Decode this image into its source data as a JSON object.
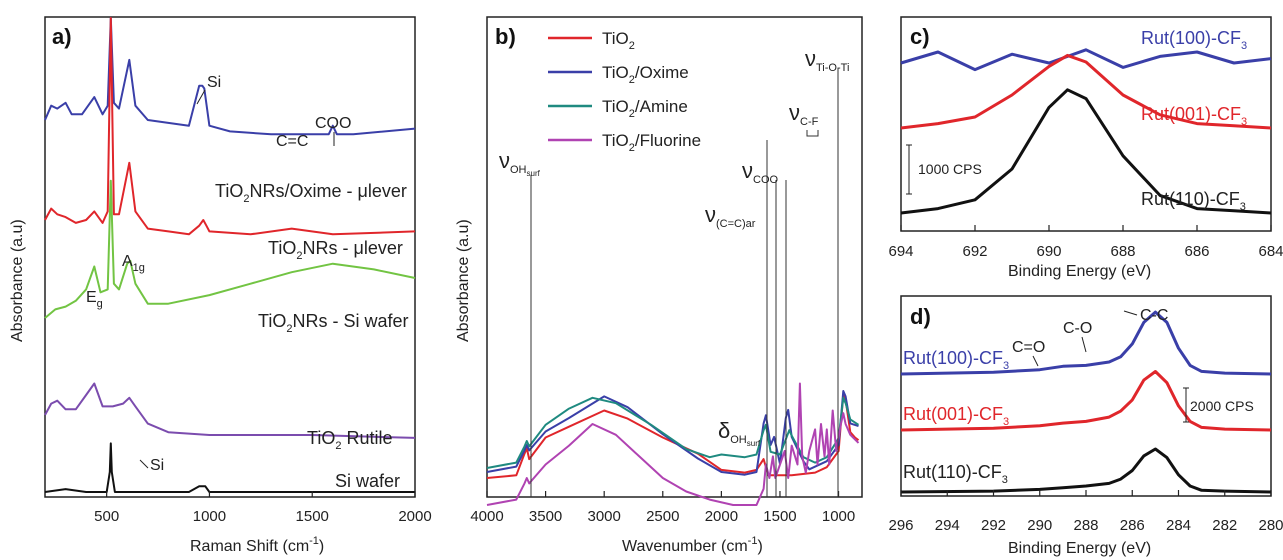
{
  "chart_data": [
    {
      "panel": "a)",
      "type": "line",
      "xlabel": "Raman Shift (cm-1)",
      "ylabel": "Absorbance (a.u)",
      "xlim": [
        200,
        2000
      ],
      "xticks": [
        "500",
        "1000",
        "1500",
        "2000"
      ],
      "series": [
        {
          "name": "TiO2NRs/Oxime - μlever",
          "color": "#3a3fa8",
          "x": [
            200,
            230,
            260,
            300,
            330,
            380,
            440,
            480,
            505,
            520,
            535,
            560,
            610,
            640,
            700,
            800,
            900,
            950,
            965,
            975,
            1000,
            1100,
            1300,
            1450,
            1580,
            1600,
            1620,
            1700,
            2000
          ],
          "y": [
            0.78,
            0.83,
            0.82,
            0.84,
            0.8,
            0.8,
            0.86,
            0.8,
            0.83,
            1.5,
            0.84,
            0.82,
            0.99,
            0.83,
            0.78,
            0.77,
            0.76,
            0.9,
            0.9,
            0.89,
            0.76,
            0.74,
            0.73,
            0.73,
            0.73,
            0.76,
            0.73,
            0.73,
            0.75
          ]
        },
        {
          "name": "TiO2NRs - μlever",
          "color": "#e0262b",
          "x": [
            200,
            230,
            260,
            300,
            350,
            400,
            440,
            480,
            505,
            520,
            535,
            560,
            610,
            640,
            700,
            800,
            900,
            950,
            970,
            985,
            1000,
            1200,
            1400,
            1600,
            2000
          ],
          "y": [
            0.44,
            0.48,
            0.46,
            0.45,
            0.43,
            0.44,
            0.47,
            0.43,
            0.47,
            1.38,
            0.46,
            0.46,
            0.64,
            0.47,
            0.41,
            0.4,
            0.39,
            0.42,
            0.44,
            0.42,
            0.4,
            0.39,
            0.41,
            0.39,
            0.4
          ]
        },
        {
          "name": "TiO2NRs - Si wafer",
          "color": "#72c443",
          "x": [
            200,
            250,
            300,
            350,
            400,
            440,
            470,
            505,
            520,
            535,
            560,
            600,
            615,
            640,
            700,
            800,
            1000,
            1200,
            1400,
            1600,
            1800,
            2000
          ],
          "y": [
            0.08,
            0.11,
            0.12,
            0.14,
            0.18,
            0.26,
            0.17,
            0.18,
            0.56,
            0.2,
            0.18,
            0.27,
            0.28,
            0.2,
            0.13,
            0.13,
            0.16,
            0.2,
            0.24,
            0.27,
            0.25,
            0.22
          ]
        },
        {
          "name": "TiO2 Rutile",
          "color": "#7b4cae",
          "x": [
            200,
            230,
            260,
            300,
            350,
            400,
            440,
            480,
            530,
            580,
            610,
            640,
            700,
            800,
            1000,
            1500,
            2000
          ],
          "y": [
            0.03,
            0.07,
            0.08,
            0.05,
            0.05,
            0.1,
            0.14,
            0.06,
            0.06,
            0.07,
            0.09,
            0.06,
            0.0,
            -0.03,
            -0.04,
            -0.04,
            -0.05
          ]
        },
        {
          "name": "Si wafer",
          "color": "#111111",
          "x": [
            200,
            300,
            400,
            500,
            515,
            520,
            525,
            540,
            700,
            900,
            950,
            980,
            1000,
            1200,
            2000
          ],
          "y": [
            -0.17,
            -0.16,
            -0.17,
            -0.17,
            -0.1,
            0.0,
            -0.1,
            -0.17,
            -0.17,
            -0.17,
            -0.15,
            -0.15,
            -0.17,
            -0.17,
            -0.17
          ]
        }
      ],
      "labels": [
        "TiO2NRs/Oxime - μlever",
        "TiO2NRs - μlever",
        "TiO2NRs - Si wafer",
        "TiO2 Rutile",
        "Si wafer"
      ],
      "annotations": [
        "Si",
        "C=C",
        "COO",
        "Eg",
        "A1g",
        "Si"
      ]
    },
    {
      "panel": "b)",
      "type": "line",
      "xlabel": "Wavenumber (cm-1)",
      "ylabel": "Absorbance (a.u)",
      "xlim": [
        4000,
        800
      ],
      "xticks": [
        "4000",
        "3500",
        "3000",
        "2500",
        "2000",
        "1500",
        "1000"
      ],
      "legend": {
        "position": "top-left",
        "entries": [
          "TiO2",
          "TiO2/Oxime",
          "TiO2/Amine",
          "TiO2/Fluorine"
        ]
      },
      "series": [
        {
          "name": "TiO2",
          "color": "#e0262b",
          "x": [
            4000,
            3750,
            3680,
            3660,
            3640,
            3500,
            3300,
            3000,
            2800,
            2500,
            2200,
            2000,
            1800,
            1700,
            1640,
            1600,
            1400,
            1200,
            1100,
            1000,
            960,
            940,
            900,
            860,
            830
          ],
          "y": [
            0.05,
            0.06,
            0.14,
            0.16,
            0.12,
            0.2,
            0.24,
            0.3,
            0.27,
            0.2,
            0.14,
            0.08,
            0.07,
            0.08,
            0.12,
            0.06,
            0.06,
            0.07,
            0.09,
            0.15,
            0.36,
            0.34,
            0.22,
            0.2,
            0.19
          ]
        },
        {
          "name": "TiO2/Oxime",
          "color": "#3a3fa8",
          "x": [
            4000,
            3750,
            3680,
            3660,
            3640,
            3500,
            3300,
            3000,
            2800,
            2500,
            2200,
            2000,
            1800,
            1700,
            1640,
            1620,
            1580,
            1550,
            1500,
            1450,
            1430,
            1400,
            1300,
            1250,
            1100,
            1000,
            960,
            940,
            900,
            830
          ],
          "y": [
            0.42,
            0.44,
            0.5,
            0.52,
            0.5,
            0.57,
            0.62,
            0.7,
            0.66,
            0.56,
            0.47,
            0.42,
            0.41,
            0.42,
            0.6,
            0.63,
            0.52,
            0.55,
            0.45,
            0.62,
            0.65,
            0.55,
            0.46,
            0.43,
            0.46,
            0.52,
            0.72,
            0.7,
            0.6,
            0.59
          ]
        },
        {
          "name": "TiO2/Amine",
          "color": "#1f8a80",
          "x": [
            4000,
            3750,
            3680,
            3660,
            3640,
            3500,
            3300,
            3100,
            2900,
            2600,
            2300,
            2100,
            2000,
            1800,
            1700,
            1640,
            1620,
            1580,
            1500,
            1420,
            1400,
            1300,
            1200,
            1100,
            1000,
            960,
            940,
            900,
            830
          ],
          "y": [
            0.74,
            0.76,
            0.82,
            0.84,
            0.82,
            0.9,
            0.96,
            1.0,
            0.98,
            0.9,
            0.81,
            0.78,
            0.79,
            0.78,
            0.79,
            0.88,
            0.9,
            0.8,
            0.79,
            0.88,
            0.86,
            0.78,
            0.76,
            0.78,
            0.85,
            1.0,
            0.98,
            0.92,
            0.9
          ]
        },
        {
          "name": "TiO2/Fluorine",
          "color": "#b043b2",
          "x": [
            4000,
            3750,
            3680,
            3660,
            3640,
            3500,
            3300,
            3100,
            2900,
            2700,
            2500,
            2300,
            2100,
            1900,
            1700,
            1640,
            1620,
            1590,
            1560,
            1540,
            1500,
            1460,
            1430,
            1400,
            1350,
            1330,
            1310,
            1280,
            1250,
            1200,
            1180,
            1150,
            1120,
            1100,
            1080,
            1050,
            1020,
            980,
            960,
            940,
            900,
            830
          ],
          "y": [
            1.1,
            1.12,
            1.18,
            1.2,
            1.18,
            1.25,
            1.32,
            1.4,
            1.36,
            1.28,
            1.2,
            1.15,
            1.12,
            1.1,
            1.1,
            1.16,
            1.25,
            1.2,
            1.28,
            1.2,
            1.25,
            1.3,
            1.2,
            1.32,
            1.25,
            1.55,
            1.28,
            1.22,
            1.3,
            1.38,
            1.25,
            1.4,
            1.28,
            1.38,
            1.25,
            1.45,
            1.3,
            1.4,
            1.44,
            1.4,
            1.36,
            1.33
          ]
        }
      ],
      "annotations": [
        "νOHsurf",
        "ν(C=C)ar",
        "νCOO",
        "νC-F",
        "νTi-O-Ti",
        "δOHsurf"
      ]
    },
    {
      "panel": "c)",
      "type": "line",
      "xlabel": "Binding Energy (eV)",
      "xlim": [
        694,
        684
      ],
      "xticks": [
        "694",
        "692",
        "690",
        "688",
        "686",
        "684"
      ],
      "scale_bar": "1000 CPS",
      "series": [
        {
          "name": "Rut(100)-CF3",
          "color": "#3a3fa8",
          "x": [
            694,
            693,
            692,
            691,
            690,
            689,
            688,
            687,
            686,
            685,
            684
          ],
          "y": [
            0.0,
            0.05,
            -0.03,
            0.04,
            0.0,
            0.06,
            -0.02,
            0.03,
            0.05,
            0.0,
            0.02
          ]
        },
        {
          "name": "Rut(001)-CF3",
          "color": "#e0262b",
          "x": [
            694,
            693,
            692,
            691,
            690,
            689.5,
            689,
            688,
            687,
            686,
            685,
            684
          ],
          "y": [
            0.0,
            0.02,
            0.05,
            0.15,
            0.28,
            0.33,
            0.3,
            0.15,
            0.06,
            0.02,
            0.01,
            0.0
          ]
        },
        {
          "name": "Rut(110)-CF3",
          "color": "#111111",
          "x": [
            694,
            693,
            692,
            691,
            690,
            689.5,
            689,
            688,
            687,
            686,
            685,
            684
          ],
          "y": [
            0.0,
            0.02,
            0.06,
            0.2,
            0.48,
            0.56,
            0.52,
            0.26,
            0.08,
            0.02,
            0.01,
            0.0
          ]
        }
      ]
    },
    {
      "panel": "d)",
      "type": "line",
      "xlabel": "Binding Energy (eV)",
      "xlim": [
        296,
        280
      ],
      "xticks": [
        "296",
        "294",
        "292",
        "290",
        "288",
        "286",
        "284",
        "282",
        "280"
      ],
      "scale_bar": "2000 CPS",
      "peak_labels": [
        "C-C",
        "C-O",
        "C=O"
      ],
      "series": [
        {
          "name": "Rut(100)-CF3",
          "color": "#3a3fa8",
          "x": [
            296,
            292,
            290,
            289,
            288,
            287,
            286.5,
            286,
            285.5,
            285,
            284.5,
            284,
            283.5,
            283,
            282,
            280
          ],
          "y": [
            0.0,
            0.02,
            0.05,
            0.09,
            0.1,
            0.14,
            0.2,
            0.35,
            0.6,
            0.72,
            0.6,
            0.3,
            0.1,
            0.03,
            0.01,
            0.0
          ]
        },
        {
          "name": "Rut(001)-CF3",
          "color": "#e0262b",
          "x": [
            296,
            292,
            290,
            289,
            288,
            287,
            286.5,
            286,
            285.5,
            285,
            284.5,
            284,
            283.5,
            283,
            282,
            280
          ],
          "y": [
            0.0,
            0.02,
            0.05,
            0.08,
            0.1,
            0.15,
            0.22,
            0.35,
            0.58,
            0.68,
            0.55,
            0.28,
            0.1,
            0.03,
            0.01,
            0.0
          ]
        },
        {
          "name": "Rut(110)-CF3",
          "color": "#111111",
          "x": [
            296,
            292,
            290,
            289,
            288,
            287,
            286.5,
            286,
            285.5,
            285,
            284.5,
            284,
            283.5,
            283,
            282,
            280
          ],
          "y": [
            0.0,
            0.01,
            0.03,
            0.05,
            0.07,
            0.1,
            0.15,
            0.25,
            0.42,
            0.5,
            0.4,
            0.2,
            0.07,
            0.02,
            0.01,
            0.0
          ]
        }
      ]
    }
  ],
  "text": {
    "a_panel": "a)",
    "b_panel": "b)",
    "c_panel": "c)",
    "d_panel": "d)",
    "a_xlabel": "Raman Shift (cm",
    "b_xlabel": "Wavenumber (cm",
    "c_xlabel": "Binding Energy (eV)",
    "d_xlabel": "Binding Energy (eV)",
    "a_ylabel": "Absorbance (a.u)",
    "b_ylabel": "Absorbance (a.u)",
    "xlabel_sup": "-1",
    "xlabel_close": ")",
    "a_label_oxime": "TiO",
    "a_label_oxime_rest": "NRs/Oxime - μlever",
    "a_label_nrs": "TiO",
    "a_label_nrs_rest": "NRs - μlever",
    "a_label_si": "TiO",
    "a_label_si_rest": "NRs - Si wafer",
    "a_label_rutile": "TiO",
    "a_label_rutile_rest": " Rutile",
    "a_label_wafer": "Si wafer",
    "sub2": "2",
    "ann_si_top": "Si",
    "ann_cc": "C=C",
    "ann_coo": "COO",
    "ann_eg": "E",
    "ann_eg_sub": "g",
    "ann_a1g": "A",
    "ann_a1g_sub": "1g",
    "ann_si_bottom": "Si",
    "b_legend_1": "TiO",
    "b_legend_2": "TiO",
    "b_legend_2_rest": "/Oxime",
    "b_legend_3": "TiO",
    "b_legend_3_rest": "/Amine",
    "b_legend_4": "TiO",
    "b_legend_4_rest": "/Fluorine",
    "nu": "ν",
    "delta": "δ",
    "b_oh_sub": "OH",
    "b_oh_subsub": "surf",
    "b_ccar_sub": "(C=C)ar",
    "b_coo_sub": "COO",
    "b_cf_sub": "C-F",
    "b_tioti_sub": "Ti-O-Ti",
    "c_label_100": "Rut(100)-CF",
    "c_label_001": "Rut(001)-CF",
    "c_label_110": "Rut(110)-CF",
    "sub3": "3",
    "c_scale": "1000 CPS",
    "d_label_100": "Rut(100)-CF",
    "d_label_001": "Rut(001)-CF",
    "d_label_110": "Rut(110)-CF",
    "d_scale": "2000 CPS",
    "d_cc": "C-C",
    "d_co": "C-O",
    "d_c2o": "C=O"
  }
}
